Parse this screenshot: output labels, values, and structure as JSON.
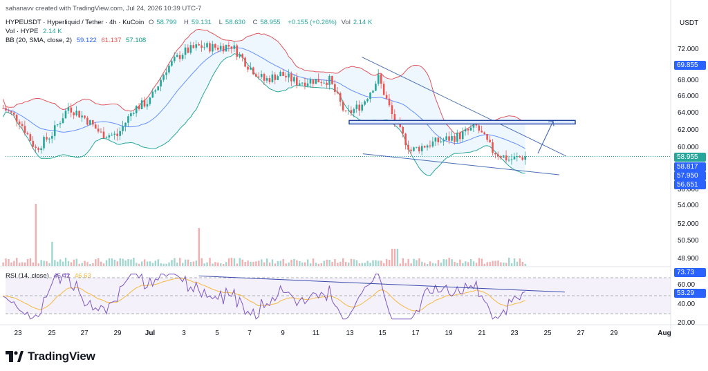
{
  "header": {
    "credit": "sahanavv created with TradingView.com, Jul 24, 2026 10:39 UTC-7",
    "symbol_line": {
      "symbol": "HYPEUSDT · Hyperliquid / Tether · 4h · KuCoin",
      "o_label": "O",
      "o": "58.799",
      "h_label": "H",
      "h": "59.131",
      "l_label": "L",
      "l": "58.630",
      "c_label": "C",
      "c": "58.955",
      "change": "+0.155 (+0.26%)",
      "vol_label": "Vol",
      "vol": "2.14 K"
    },
    "vol_line": {
      "label": "Vol · HYPE",
      "value": "2.14 K"
    },
    "bb_line": {
      "label": "BB (20, SMA, close, 2)",
      "basis": "59.122",
      "upper": "61.137",
      "lower": "57.108"
    },
    "rsi_line": {
      "label": "RSI (14, close)",
      "rsi": "45.42",
      "ma": "46.63"
    }
  },
  "price_axis": {
    "currency": "USDT",
    "ticks": [
      "72.000",
      "70.000",
      "68.000",
      "66.000",
      "64.000",
      "62.000",
      "60.000",
      "56.000",
      "54.000",
      "52.000",
      "50.500",
      "48.900"
    ],
    "tags": [
      {
        "text": "69.855",
        "color": "#2962ff"
      },
      {
        "text": "58.955",
        "color": "#26a69a"
      },
      {
        "text": "58.817",
        "color": "#2962ff"
      },
      {
        "text": "57.950",
        "color": "#2962ff"
      },
      {
        "text": "56.651",
        "color": "#2962ff"
      }
    ]
  },
  "rsi_axis": {
    "ticks": [
      "60.00",
      "40.00",
      "20.00"
    ],
    "tags": [
      {
        "text": "73.73",
        "color": "#2962ff"
      },
      {
        "text": "53.29",
        "color": "#2962ff"
      }
    ]
  },
  "time_axis": [
    "23",
    "25",
    "27",
    "29",
    "Jul",
    "3",
    "5",
    "7",
    "9",
    "11",
    "13",
    "15",
    "17",
    "19",
    "21",
    "23",
    "25",
    "27",
    "29",
    "Aug"
  ],
  "brand": {
    "name": "TradingView"
  },
  "colors": {
    "up": "#26a69a",
    "down": "#ef5350",
    "bb_upper": "#e0565c",
    "bb_lower": "#26a69a",
    "bb_basis": "#2962ff",
    "bb_fill": "#e3f2fd",
    "rsi": "#7e57c2",
    "rsi_ma": "#f5b942",
    "drawing": "#4a6fb5"
  },
  "chart_data": {
    "type": "candlestick",
    "title": "HYPEUSDT · Hyperliquid / Tether · 4h · KuCoin",
    "x_start": "Jun 22",
    "x_end": "Aug 1",
    "ylim": [
      47.5,
      74.0
    ],
    "close_path_approx": [
      {
        "t": "Jun 22",
        "close": 64.4
      },
      {
        "t": "Jun 23",
        "close": 63.0
      },
      {
        "t": "Jun 24",
        "close": 59.8
      },
      {
        "t": "Jun 25",
        "close": 61.5
      },
      {
        "t": "Jun 26",
        "close": 64.5
      },
      {
        "t": "Jun 27",
        "close": 63.3
      },
      {
        "t": "Jun 28",
        "close": 61.5
      },
      {
        "t": "Jun 29",
        "close": 61.3
      },
      {
        "t": "Jun 30",
        "close": 64.3
      },
      {
        "t": "Jul 1",
        "close": 65.2
      },
      {
        "t": "Jul 2",
        "close": 68.8
      },
      {
        "t": "Jul 3",
        "close": 70.6
      },
      {
        "t": "Jul 4",
        "close": 71.3
      },
      {
        "t": "Jul 5",
        "close": 71.2
      },
      {
        "t": "Jul 6",
        "close": 71.4
      },
      {
        "t": "Jul 7",
        "close": 69.2
      },
      {
        "t": "Jul 8",
        "close": 67.5
      },
      {
        "t": "Jul 9",
        "close": 68.2
      },
      {
        "t": "Jul 10",
        "close": 67.3
      },
      {
        "t": "Jul 11",
        "close": 67.5
      },
      {
        "t": "Jul 12",
        "close": 67.5
      },
      {
        "t": "Jul 13",
        "close": 63.6
      },
      {
        "t": "Jul 14",
        "close": 64.8
      },
      {
        "t": "Jul 15",
        "close": 67.8
      },
      {
        "t": "Jul 16",
        "close": 62.8
      },
      {
        "t": "Jul 17",
        "close": 59.6
      },
      {
        "t": "Jul 18",
        "close": 60.3
      },
      {
        "t": "Jul 19",
        "close": 60.8
      },
      {
        "t": "Jul 20",
        "close": 61.3
      },
      {
        "t": "Jul 21",
        "close": 62.3
      },
      {
        "t": "Jul 22",
        "close": 59.6
      },
      {
        "t": "Jul 23",
        "close": 58.6
      },
      {
        "t": "Jul 24",
        "close": 58.955
      }
    ],
    "bollinger": {
      "period": 20,
      "std": 2,
      "basis": 59.122,
      "upper": 61.137,
      "lower": 57.108
    },
    "volume_spikes": [
      {
        "t": "Jun 24",
        "value": "tallest"
      },
      {
        "t": "Jul 4",
        "value": "second tallest"
      }
    ],
    "rsi": {
      "period": 14,
      "value": 45.42,
      "ma": 46.63,
      "levels": [
        70,
        50,
        30
      ]
    },
    "annotations": {
      "resistance_zone": {
        "from": 62.6,
        "to": 63.0
      },
      "falling_wedge_upper": [
        {
          "t": "Jul 14",
          "price": 70.1
        },
        {
          "t": "Jul 26",
          "price": 59.0
        }
      ],
      "falling_wedge_lower": [
        {
          "t": "Jul 16",
          "price": 59.1
        },
        {
          "t": "Jul 26",
          "price": 56.9
        }
      ],
      "breakout_arrow": [
        {
          "t": "Jul 24",
          "price": 59.3
        },
        {
          "t": "Jul 25",
          "price": 62.9
        }
      ],
      "rsi_trendline": [
        {
          "t": "Jul 4",
          "rsi": 72
        },
        {
          "t": "Jul 26",
          "rsi": 54
        }
      ]
    }
  }
}
